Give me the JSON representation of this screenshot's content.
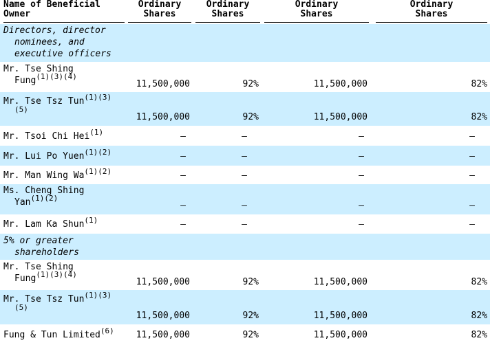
{
  "header": {
    "col_name": [
      "Name of Beneficial",
      "Owner"
    ],
    "col1": [
      "Ordinary",
      "Shares"
    ],
    "col2": [
      "Ordinary",
      "Shares"
    ],
    "col3": [
      "Ordinary",
      "Shares"
    ],
    "col4": [
      "Ordinary",
      "Shares"
    ]
  },
  "sections": {
    "directors": [
      "Directors, director",
      "nominees, and",
      "executive officers"
    ],
    "greater": [
      "5% or greater",
      "shareholders"
    ]
  },
  "rows": [
    {
      "name": [
        "Mr.  Tse Shing",
        "Fung"
      ],
      "note": "(1)(3)(4)",
      "v1": "11,500,000",
      "v2": "92%",
      "v3": "11,500,000",
      "v4": "82%"
    },
    {
      "name": [
        "Mr.  Tse Tsz Tun"
      ],
      "note": "(1)(3)",
      "note2": "(5)",
      "v1": "11,500,000",
      "v2": "92%",
      "v3": "11,500,000",
      "v4": "82%"
    },
    {
      "name": [
        "Mr.  Tsoi Chi Hei"
      ],
      "note": "(1)",
      "v1": "—",
      "v2": "—",
      "v3": "—",
      "v4": "—"
    },
    {
      "name": [
        "Mr.  Lui Po Yuen"
      ],
      "note": "(1)(2)",
      "v1": "—",
      "v2": "—",
      "v3": "—",
      "v4": "—"
    },
    {
      "name": [
        "Mr.  Man Wing Wa"
      ],
      "note": "(1)(2)",
      "v1": "—",
      "v2": "—",
      "v3": "—",
      "v4": "—"
    },
    {
      "name": [
        "Ms. Cheng Shing",
        "Yan"
      ],
      "note": "(1)(2)",
      "v1": "—",
      "v2": "—",
      "v3": "—",
      "v4": "—"
    },
    {
      "name": [
        "Mr.  Lam Ka Shun"
      ],
      "note": "(1)",
      "v1": "—",
      "v2": "—",
      "v3": "—",
      "v4": "—"
    },
    {
      "name": [
        "Mr.  Tse Shing",
        "Fung"
      ],
      "note": "(1)(3)(4)",
      "v1": "11,500,000",
      "v2": "92%",
      "v3": "11,500,000",
      "v4": "82%"
    },
    {
      "name": [
        "Mr. Tse Tsz Tun"
      ],
      "note": "(1)(3)",
      "note2": "(5)",
      "v1": "11,500,000",
      "v2": "92%",
      "v3": "11,500,000",
      "v4": "82%"
    },
    {
      "name": [
        "Fung & Tun Limited"
      ],
      "note": "(6)",
      "v1": "11,500,000",
      "v2": "92%",
      "v3": "11,500,000",
      "v4": "82%"
    }
  ]
}
